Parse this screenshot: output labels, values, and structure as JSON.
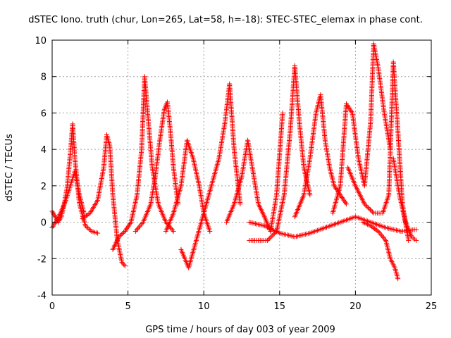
{
  "chart_data": {
    "type": "scatter",
    "title": "dSTEC Iono. truth (chur, Lon=265, Lat=58, h=-18): STEC-STEC_elemax in phase cont.",
    "xlabel": "GPS time / hours of day 003 of year 2009",
    "ylabel": "dSTEC  / TECUs",
    "xlim": [
      0,
      25
    ],
    "ylim": [
      -4,
      10
    ],
    "x_ticks": [
      0,
      5,
      10,
      15,
      20,
      25
    ],
    "y_ticks": [
      -4,
      -2,
      0,
      2,
      4,
      6,
      8,
      10
    ],
    "x_tick_labels": [
      "0",
      "5",
      "10",
      "15",
      "20",
      "25"
    ],
    "y_tick_labels": [
      "-4",
      "-2",
      "0",
      "2",
      "4",
      "6",
      "8",
      "10"
    ],
    "grid": true,
    "marker": "+",
    "marker_color": "#ff0000",
    "series": [
      {
        "x": [
          0.0,
          0.2,
          0.4,
          0.6,
          0.8,
          1.0,
          1.2,
          1.35,
          1.5,
          1.8,
          2.2,
          2.6,
          3.0
        ],
        "values": [
          0.6,
          0.3,
          0.0,
          0.3,
          1.0,
          2.0,
          3.8,
          5.4,
          3.5,
          1.0,
          -0.2,
          -0.5,
          -0.6
        ]
      },
      {
        "x": [
          0.0,
          0.3,
          0.6,
          0.9,
          1.2,
          1.5,
          1.8,
          2.1
        ],
        "values": [
          -0.3,
          0.1,
          0.6,
          1.2,
          2.0,
          2.8,
          1.5,
          0.5
        ]
      },
      {
        "x": [
          2.0,
          2.5,
          3.0,
          3.4,
          3.6,
          3.8,
          4.0,
          4.3,
          4.6,
          4.8
        ],
        "values": [
          0.2,
          0.5,
          1.2,
          3.0,
          4.8,
          4.2,
          1.5,
          -1.0,
          -2.2,
          -2.4
        ]
      },
      {
        "x": [
          4.0,
          4.4,
          4.8,
          5.2,
          5.6,
          5.9,
          6.1,
          6.3,
          6.6,
          7.0,
          7.5,
          8.0
        ],
        "values": [
          -1.5,
          -0.8,
          -0.5,
          0.0,
          1.5,
          4.0,
          8.0,
          6.0,
          3.0,
          1.0,
          0.0,
          -0.5
        ]
      },
      {
        "x": [
          5.5,
          6.0,
          6.5,
          6.8,
          7.1,
          7.4,
          7.6,
          7.8,
          8.0,
          8.3
        ],
        "values": [
          -0.5,
          0.0,
          1.0,
          2.5,
          4.5,
          6.2,
          6.6,
          5.0,
          3.0,
          1.0
        ]
      },
      {
        "x": [
          7.5,
          8.0,
          8.5,
          8.9,
          9.3,
          9.7,
          10.0,
          10.4
        ],
        "values": [
          -0.5,
          0.5,
          2.0,
          4.5,
          3.5,
          2.0,
          0.5,
          -0.5
        ]
      },
      {
        "x": [
          8.5,
          9.0,
          9.5,
          10.0,
          10.5,
          11.0,
          11.4,
          11.7,
          12.0,
          12.4
        ],
        "values": [
          -1.5,
          -2.5,
          -1.0,
          0.5,
          2.0,
          3.5,
          5.5,
          7.6,
          4.0,
          1.0
        ]
      },
      {
        "x": [
          11.5,
          12.0,
          12.5,
          12.9,
          13.3,
          13.6,
          14.0,
          14.4,
          14.8,
          15.2
        ],
        "values": [
          0.0,
          1.0,
          2.5,
          4.5,
          2.5,
          1.0,
          0.3,
          -0.5,
          1.5,
          6.0
        ]
      },
      {
        "x": [
          13.0,
          13.6,
          14.2,
          14.8,
          15.3,
          15.7,
          16.0,
          16.3,
          16.6,
          17.0
        ],
        "values": [
          -1.0,
          -1.0,
          -1.0,
          -0.5,
          1.5,
          5.0,
          8.6,
          5.5,
          3.0,
          1.5
        ]
      },
      {
        "x": [
          16.0,
          16.6,
          17.0,
          17.4,
          17.7,
          18.0,
          18.3,
          18.6,
          19.0,
          19.4
        ],
        "values": [
          0.3,
          1.5,
          3.5,
          6.0,
          7.0,
          4.5,
          3.0,
          2.0,
          1.5,
          1.0
        ]
      },
      {
        "x": [
          18.5,
          19.0,
          19.4,
          19.8,
          20.2,
          20.6,
          21.0,
          21.2,
          21.5,
          21.9,
          22.3
        ],
        "values": [
          0.5,
          2.0,
          6.5,
          6.0,
          3.5,
          2.0,
          5.5,
          9.8,
          8.5,
          6.0,
          4.0
        ]
      },
      {
        "x": [
          19.5,
          20.0,
          20.6,
          21.2,
          21.8,
          22.2,
          22.5,
          22.8,
          23.1,
          23.5
        ],
        "values": [
          3.0,
          2.0,
          1.0,
          0.5,
          0.5,
          1.5,
          8.8,
          5.0,
          1.0,
          -1.0
        ]
      },
      {
        "x": [
          20.5,
          21.0,
          21.5,
          22.0,
          22.3,
          22.6,
          22.8
        ],
        "values": [
          0.0,
          -0.2,
          -0.5,
          -1.0,
          -2.0,
          -2.5,
          -3.1
        ]
      },
      {
        "x": [
          22.5,
          22.9,
          23.3,
          23.7,
          24.0
        ],
        "values": [
          3.5,
          1.5,
          0.0,
          -0.8,
          -1.0
        ]
      },
      {
        "x": [
          13.0,
          14.0,
          15.0,
          16.0,
          17.0,
          18.0,
          19.0,
          20.0,
          21.0,
          22.0,
          23.0,
          24.0
        ],
        "values": [
          0.0,
          -0.2,
          -0.6,
          -0.8,
          -0.6,
          -0.3,
          0.0,
          0.3,
          0.0,
          -0.3,
          -0.5,
          -0.4
        ]
      }
    ]
  }
}
